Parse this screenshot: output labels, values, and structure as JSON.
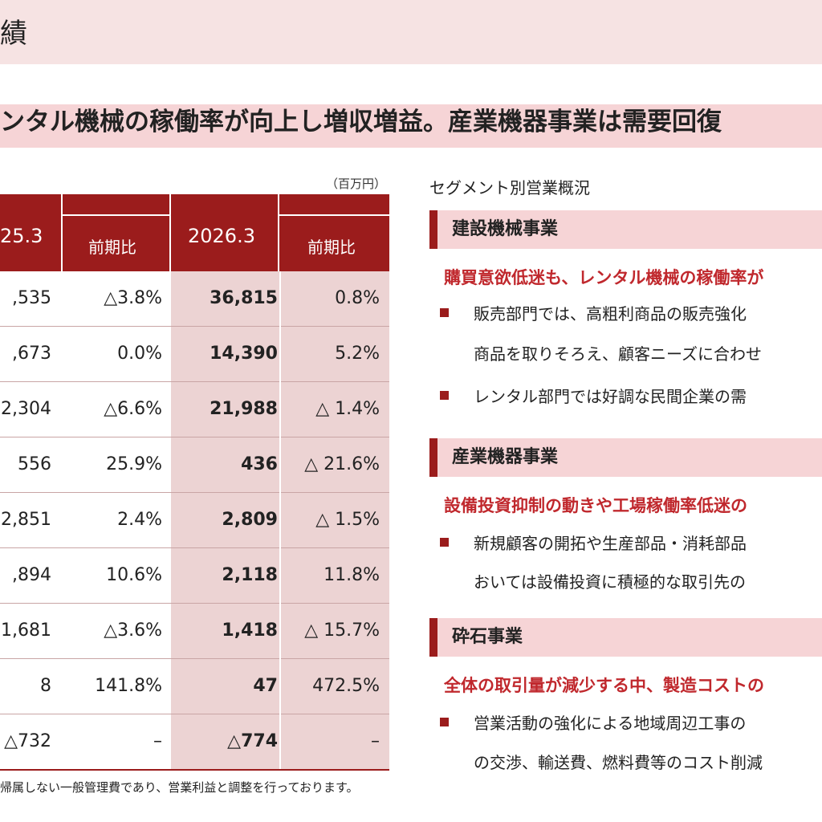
{
  "page": {
    "title": "績",
    "headline": "ンタル機械の稼働率が向上し増収増益。産業機器事業は需要回復"
  },
  "table": {
    "unit": "（百万円）",
    "headers": {
      "col_prev": "25.3",
      "col_prev_ratio": "前期比",
      "col_curr": "2026.3",
      "col_curr_ratio": "前期比"
    },
    "rows": [
      {
        "prev": ",535",
        "prev_ratio": "△3.8%",
        "curr": "36,815",
        "curr_ratio": "0.8%"
      },
      {
        "prev": ",673",
        "prev_ratio": "0.0%",
        "curr": "14,390",
        "curr_ratio": "5.2%"
      },
      {
        "prev": "2,304",
        "prev_ratio": "△6.6%",
        "curr": "21,988",
        "curr_ratio": "△ 1.4%"
      },
      {
        "prev": "556",
        "prev_ratio": "25.9%",
        "curr": "436",
        "curr_ratio": "△ 21.6%"
      },
      {
        "prev": "2,851",
        "prev_ratio": "2.4%",
        "curr": "2,809",
        "curr_ratio": "△ 1.5%"
      },
      {
        "prev": ",894",
        "prev_ratio": "10.6%",
        "curr": "2,118",
        "curr_ratio": "11.8%"
      },
      {
        "prev": "1,681",
        "prev_ratio": "△3.6%",
        "curr": "1,418",
        "curr_ratio": "△ 15.7%"
      },
      {
        "prev": "8",
        "prev_ratio": "141.8%",
        "curr": "47",
        "curr_ratio": "472.5%"
      },
      {
        "prev": "△732",
        "prev_ratio": "–",
        "curr": "△774",
        "curr_ratio": "–"
      }
    ],
    "footnote": "帰属しない一般管理費であり、営業利益と調整を行っております。"
  },
  "overview": {
    "title": "セグメント別営業概況",
    "segments": [
      {
        "name": "建設機械事業",
        "summary": "購買意欲低迷も、レンタル機械の稼働率が",
        "bullets": [
          {
            "line1": "販売部門では、高粗利商品の販売強化",
            "line2": "商品を取りそろえ、顧客ニーズに合わせ"
          },
          {
            "line1": "レンタル部門では好調な民間企業の需",
            "line2": ""
          }
        ]
      },
      {
        "name": "産業機器事業",
        "summary": "設備投資抑制の動きや工場稼働率低迷の",
        "bullets": [
          {
            "line1": "新規顧客の開拓や生産部品・消耗部品",
            "line2": "おいては設備投資に積極的な取引先の"
          }
        ]
      },
      {
        "name": "砕石事業",
        "summary": "全体の取引量が減少する中、製造コストの",
        "bullets": [
          {
            "line1": "営業活動の強化による地域周辺工事の",
            "line2": "の交渉、輸送費、燃料費等のコスト削減"
          }
        ]
      }
    ]
  }
}
